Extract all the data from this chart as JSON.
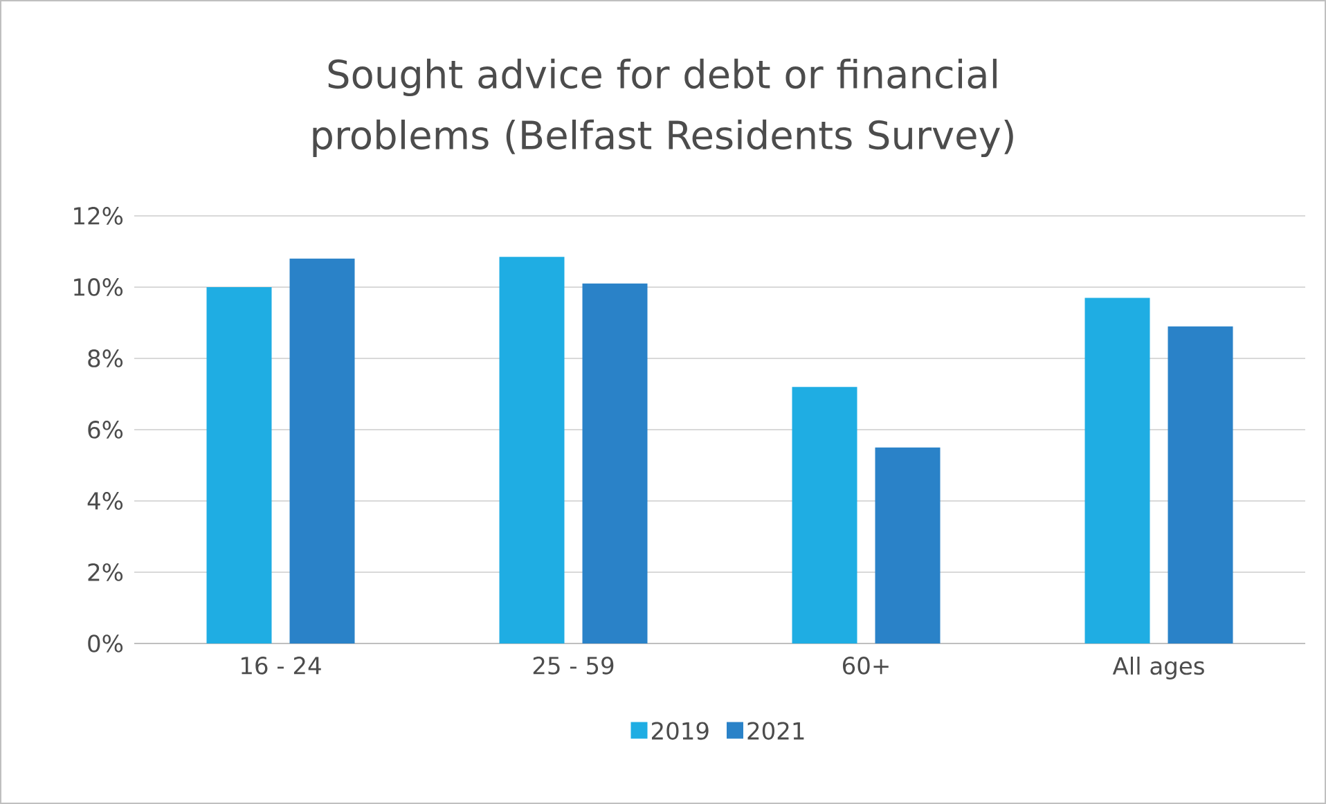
{
  "chart_data": {
    "type": "bar",
    "title": "Sought advice for debt or financial problems (Belfast Residents Survey)",
    "categories": [
      "16 - 24",
      "25 - 59",
      "60+",
      "All ages"
    ],
    "series": [
      {
        "name": "2019",
        "color": "#1fade3",
        "values": [
          10.0,
          10.85,
          7.2,
          9.7
        ]
      },
      {
        "name": "2021",
        "color": "#2a82c8",
        "values": [
          10.8,
          10.1,
          5.5,
          8.9
        ]
      }
    ],
    "ylim": [
      0,
      12
    ],
    "yticks": [
      {
        "value": 0,
        "label": "0%"
      },
      {
        "value": 2,
        "label": "2%"
      },
      {
        "value": 4,
        "label": "4%"
      },
      {
        "value": 6,
        "label": "6%"
      },
      {
        "value": 8,
        "label": "8%"
      },
      {
        "value": 10,
        "label": "10%"
      },
      {
        "value": 12,
        "label": "12%"
      }
    ],
    "grid": "y",
    "legend": "bottom"
  }
}
